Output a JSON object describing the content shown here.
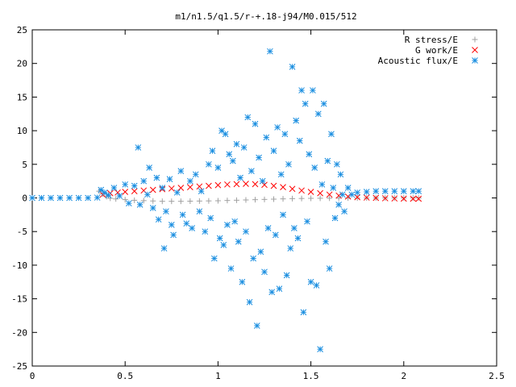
{
  "chart_data": {
    "type": "scatter",
    "title": "m1/n1.5/q1.5/r-+.18-j94/M0.015/512",
    "xlabel": "",
    "ylabel": "",
    "xlim": [
      0,
      2.5
    ],
    "ylim": [
      -25,
      25
    ],
    "x_ticks": [
      "0",
      "0.5",
      "1",
      "1.5",
      "2",
      "2.5"
    ],
    "y_ticks": [
      "25",
      "20",
      "15",
      "10",
      "5",
      "0",
      "-5",
      "-10",
      "-15",
      "-20",
      "-25"
    ],
    "grid": false,
    "legend_position": "top-right",
    "series": [
      {
        "name": "R stress/E",
        "marker": "plus",
        "color": "#a0a0a0",
        "points": [
          [
            0.36,
            1.0
          ],
          [
            0.38,
            0.6
          ],
          [
            0.4,
            0.2
          ],
          [
            0.42,
            -0.05
          ],
          [
            0.45,
            -0.15
          ],
          [
            0.5,
            -0.25
          ],
          [
            0.55,
            -0.35
          ],
          [
            0.6,
            -0.4
          ],
          [
            0.65,
            -0.45
          ],
          [
            0.7,
            -0.5
          ],
          [
            0.75,
            -0.5
          ],
          [
            0.8,
            -0.5
          ],
          [
            0.85,
            -0.48
          ],
          [
            0.9,
            -0.46
          ],
          [
            0.95,
            -0.44
          ],
          [
            1.0,
            -0.42
          ],
          [
            1.05,
            -0.38
          ],
          [
            1.1,
            -0.34
          ],
          [
            1.15,
            -0.3
          ],
          [
            1.2,
            -0.26
          ],
          [
            1.25,
            -0.22
          ],
          [
            1.3,
            -0.18
          ],
          [
            1.35,
            -0.14
          ],
          [
            1.4,
            -0.1
          ],
          [
            1.45,
            -0.08
          ],
          [
            1.5,
            -0.06
          ],
          [
            1.55,
            -0.05
          ],
          [
            1.6,
            -0.04
          ],
          [
            1.65,
            -0.03
          ],
          [
            1.7,
            -0.02
          ],
          [
            1.75,
            -0.02
          ],
          [
            1.8,
            -0.01
          ],
          [
            1.85,
            -0.01
          ],
          [
            1.9,
            0.0
          ],
          [
            1.95,
            0.0
          ],
          [
            2.0,
            0.0
          ],
          [
            2.05,
            0.0
          ],
          [
            2.08,
            0.0
          ]
        ]
      },
      {
        "name": "G work/E",
        "marker": "cross",
        "color": "#ff0000",
        "points": [
          [
            0.38,
            0.5
          ],
          [
            0.42,
            0.7
          ],
          [
            0.46,
            0.8
          ],
          [
            0.5,
            0.9
          ],
          [
            0.55,
            1.0
          ],
          [
            0.6,
            1.1
          ],
          [
            0.65,
            1.2
          ],
          [
            0.7,
            1.3
          ],
          [
            0.75,
            1.4
          ],
          [
            0.8,
            1.5
          ],
          [
            0.85,
            1.6
          ],
          [
            0.9,
            1.7
          ],
          [
            0.95,
            1.8
          ],
          [
            1.0,
            1.9
          ],
          [
            1.05,
            2.0
          ],
          [
            1.1,
            2.05
          ],
          [
            1.15,
            2.1
          ],
          [
            1.2,
            2.05
          ],
          [
            1.25,
            1.95
          ],
          [
            1.3,
            1.8
          ],
          [
            1.35,
            1.6
          ],
          [
            1.4,
            1.35
          ],
          [
            1.45,
            1.1
          ],
          [
            1.5,
            0.9
          ],
          [
            1.55,
            0.7
          ],
          [
            1.6,
            0.5
          ],
          [
            1.65,
            0.35
          ],
          [
            1.7,
            0.2
          ],
          [
            1.75,
            0.1
          ],
          [
            1.8,
            0.05
          ],
          [
            1.85,
            0.0
          ],
          [
            1.9,
            -0.05
          ],
          [
            1.95,
            -0.08
          ],
          [
            2.0,
            -0.1
          ],
          [
            2.05,
            -0.12
          ],
          [
            2.08,
            -0.12
          ]
        ]
      },
      {
        "name": "Acoustic flux/E",
        "marker": "star",
        "color": "#1a8ee0",
        "points": [
          [
            0.0,
            0.0
          ],
          [
            0.05,
            0.0
          ],
          [
            0.1,
            0.0
          ],
          [
            0.15,
            0.0
          ],
          [
            0.2,
            0.0
          ],
          [
            0.25,
            0.0
          ],
          [
            0.3,
            0.0
          ],
          [
            0.35,
            0.05
          ],
          [
            0.37,
            1.2
          ],
          [
            0.39,
            0.8
          ],
          [
            0.41,
            0.4
          ],
          [
            0.44,
            1.5
          ],
          [
            0.47,
            0.3
          ],
          [
            0.5,
            2.0
          ],
          [
            0.52,
            -0.8
          ],
          [
            0.55,
            1.8
          ],
          [
            0.57,
            7.5
          ],
          [
            0.58,
            -1.0
          ],
          [
            0.6,
            2.5
          ],
          [
            0.62,
            0.5
          ],
          [
            0.63,
            4.5
          ],
          [
            0.65,
            -1.5
          ],
          [
            0.67,
            3.0
          ],
          [
            0.68,
            -3.2
          ],
          [
            0.7,
            1.5
          ],
          [
            0.71,
            -7.5
          ],
          [
            0.72,
            -2.0
          ],
          [
            0.74,
            2.8
          ],
          [
            0.75,
            -4.0
          ],
          [
            0.76,
            -5.5
          ],
          [
            0.78,
            0.8
          ],
          [
            0.8,
            4.0
          ],
          [
            0.81,
            -2.5
          ],
          [
            0.83,
            -3.8
          ],
          [
            0.85,
            2.5
          ],
          [
            0.86,
            -4.5
          ],
          [
            0.88,
            3.5
          ],
          [
            0.9,
            -2.0
          ],
          [
            0.91,
            1.0
          ],
          [
            0.93,
            -5.0
          ],
          [
            0.95,
            5.0
          ],
          [
            0.96,
            -3.0
          ],
          [
            0.97,
            7.0
          ],
          [
            0.98,
            -9.0
          ],
          [
            1.0,
            4.5
          ],
          [
            1.01,
            -6.0
          ],
          [
            1.02,
            10.0
          ],
          [
            1.03,
            -7.0
          ],
          [
            1.04,
            9.5
          ],
          [
            1.05,
            -4.0
          ],
          [
            1.06,
            6.5
          ],
          [
            1.07,
            -10.5
          ],
          [
            1.08,
            5.5
          ],
          [
            1.09,
            -3.5
          ],
          [
            1.1,
            8.0
          ],
          [
            1.11,
            -6.5
          ],
          [
            1.12,
            3.0
          ],
          [
            1.13,
            -12.5
          ],
          [
            1.14,
            7.5
          ],
          [
            1.15,
            -5.0
          ],
          [
            1.16,
            12.0
          ],
          [
            1.17,
            -15.5
          ],
          [
            1.18,
            4.0
          ],
          [
            1.19,
            -9.0
          ],
          [
            1.2,
            11.0
          ],
          [
            1.21,
            -19.0
          ],
          [
            1.22,
            6.0
          ],
          [
            1.23,
            -8.0
          ],
          [
            1.24,
            2.5
          ],
          [
            1.25,
            -11.0
          ],
          [
            1.26,
            9.0
          ],
          [
            1.27,
            -4.5
          ],
          [
            1.28,
            21.8
          ],
          [
            1.29,
            -14.0
          ],
          [
            1.3,
            7.0
          ],
          [
            1.31,
            -5.5
          ],
          [
            1.32,
            10.5
          ],
          [
            1.33,
            -13.5
          ],
          [
            1.34,
            3.5
          ],
          [
            1.35,
            -2.5
          ],
          [
            1.36,
            9.5
          ],
          [
            1.37,
            -11.5
          ],
          [
            1.38,
            5.0
          ],
          [
            1.39,
            -7.5
          ],
          [
            1.4,
            19.5
          ],
          [
            1.41,
            -4.5
          ],
          [
            1.42,
            11.5
          ],
          [
            1.43,
            -6.0
          ],
          [
            1.44,
            8.5
          ],
          [
            1.45,
            16.0
          ],
          [
            1.46,
            -17.0
          ],
          [
            1.47,
            14.0
          ],
          [
            1.48,
            -3.5
          ],
          [
            1.49,
            6.5
          ],
          [
            1.5,
            -12.5
          ],
          [
            1.51,
            16.0
          ],
          [
            1.52,
            4.5
          ],
          [
            1.53,
            -13.0
          ],
          [
            1.54,
            12.5
          ],
          [
            1.55,
            -22.5
          ],
          [
            1.56,
            2.0
          ],
          [
            1.57,
            14.0
          ],
          [
            1.58,
            -6.5
          ],
          [
            1.59,
            5.5
          ],
          [
            1.6,
            -10.5
          ],
          [
            1.61,
            9.5
          ],
          [
            1.62,
            1.5
          ],
          [
            1.63,
            -3.0
          ],
          [
            1.64,
            5.0
          ],
          [
            1.65,
            -1.0
          ],
          [
            1.66,
            3.5
          ],
          [
            1.67,
            0.5
          ],
          [
            1.68,
            -2.0
          ],
          [
            1.7,
            1.5
          ],
          [
            1.72,
            0.5
          ],
          [
            1.75,
            0.8
          ],
          [
            1.8,
            0.9
          ],
          [
            1.85,
            1.0
          ],
          [
            1.9,
            1.0
          ],
          [
            1.95,
            1.0
          ],
          [
            2.0,
            1.0
          ],
          [
            2.05,
            1.0
          ],
          [
            2.08,
            1.0
          ]
        ]
      }
    ]
  }
}
